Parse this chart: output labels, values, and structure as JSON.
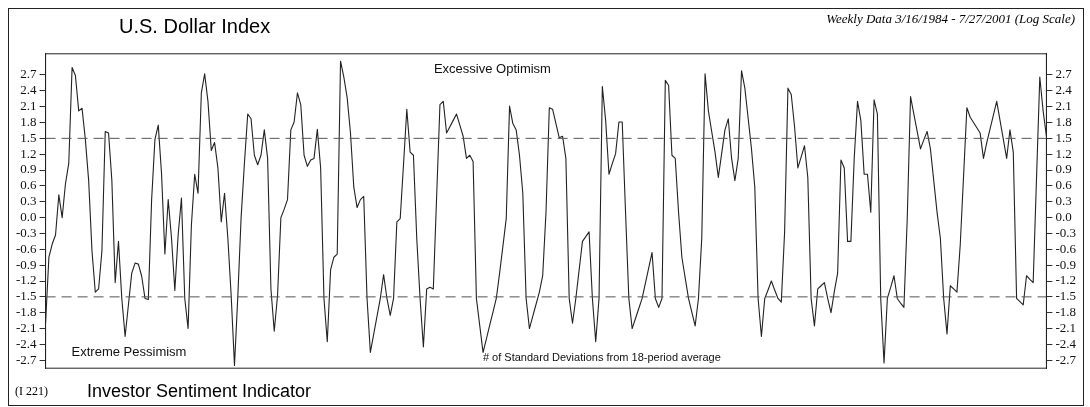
{
  "chart_data": {
    "type": "line",
    "title": "U.S. Dollar Index",
    "subtitle": "Weekly Data 3/16/1984 - 7/27/2001 (Log Scale)",
    "annotations": [
      "Excessive Optimism",
      "Extreme Pessimism",
      "# of Standard Deviations from 18-period average",
      "(I 221)",
      "Investor Sentiment Indicator"
    ],
    "categories": [
      null,
      null,
      null,
      null,
      null,
      null,
      null,
      null,
      null,
      null,
      null,
      null,
      null,
      null,
      null,
      null,
      null,
      null,
      null,
      null,
      null,
      null,
      null,
      null,
      null,
      null,
      null,
      null,
      null,
      null,
      null,
      null,
      null,
      null,
      null,
      null,
      null,
      null,
      null,
      null,
      null,
      null,
      null,
      null,
      null,
      null,
      null,
      null,
      null,
      null,
      null,
      null,
      null,
      null,
      null,
      null,
      null,
      null,
      null,
      null,
      null,
      null,
      null,
      null,
      null,
      null,
      null,
      null,
      null,
      null,
      null,
      null,
      null,
      null,
      null,
      null,
      null,
      null,
      null,
      null,
      null,
      null,
      null,
      null,
      null,
      null,
      null,
      null,
      null,
      null,
      null,
      null,
      null,
      null,
      null,
      null,
      null,
      null,
      null,
      null,
      null,
      null,
      null,
      null,
      null,
      null,
      null,
      null,
      null,
      null,
      null,
      null,
      null,
      null,
      null,
      null,
      null,
      null,
      null,
      null,
      null,
      null,
      null,
      null,
      null,
      null,
      null,
      null,
      null,
      null,
      null,
      null,
      null,
      null,
      null,
      null,
      null,
      null,
      null,
      null,
      null,
      null,
      null,
      null,
      null,
      null,
      null,
      null,
      null,
      null,
      null,
      null,
      null,
      null,
      null,
      null,
      null,
      null,
      null,
      null,
      null,
      null,
      null,
      null,
      null,
      null,
      null,
      null,
      null,
      null,
      null,
      null,
      null,
      null,
      null,
      null,
      null,
      null,
      null,
      null,
      null,
      null,
      null,
      null,
      null,
      null,
      null,
      null,
      null,
      null,
      null,
      null,
      null,
      null,
      null,
      null,
      null,
      null,
      null,
      null,
      null,
      null,
      null,
      null,
      null,
      null,
      null,
      null,
      null,
      null,
      null,
      null,
      null,
      null,
      null,
      null,
      null,
      null,
      null,
      null,
      null,
      null,
      null,
      null,
      null,
      null,
      null,
      null,
      null,
      null,
      null,
      null,
      null,
      null,
      null,
      null,
      null,
      null,
      null,
      null,
      null,
      null,
      null,
      null,
      null,
      null,
      null,
      null,
      null,
      null,
      null,
      null,
      null,
      null,
      null,
      null,
      null,
      null,
      null,
      null,
      null,
      null,
      null,
      null,
      null,
      null,
      null,
      null,
      null,
      null,
      null,
      null,
      null,
      null,
      null,
      null,
      null,
      null,
      null,
      null,
      null,
      null,
      null,
      null,
      null,
      null,
      null,
      null,
      null,
      null,
      null,
      null,
      null,
      null,
      null,
      null,
      null,
      null,
      null,
      null,
      null,
      null,
      null
    ],
    "series": [
      {
        "color": "#222222",
        "values": [
          -2.0,
          -0.75,
          -0.5,
          -0.33,
          0.43,
          0.0,
          0.64,
          1.03,
          2.84,
          2.69,
          2.02,
          2.07,
          1.48,
          0.7,
          -0.63,
          -1.41,
          -1.35,
          -0.63,
          1.63,
          1.6,
          0.7,
          -1.23,
          -0.45,
          -1.53,
          -2.25,
          -1.65,
          -1.05,
          -0.86,
          -0.88,
          -1.11,
          -1.53,
          -1.55,
          0.34,
          1.48,
          1.75,
          0.82,
          -0.69,
          0.34,
          -0.39,
          -1.38,
          -0.33,
          0.37,
          -1.53,
          -2.1,
          -0.14,
          0.82,
          0.46,
          2.36,
          2.72,
          2.2,
          1.27,
          1.42,
          0.94,
          -0.08,
          0.46,
          -0.39,
          -1.47,
          -2.8,
          -1.5,
          0.0,
          1.03,
          1.96,
          1.87,
          1.18,
          1.0,
          1.18,
          1.66,
          1.12,
          -1.35,
          -2.15,
          -1.47,
          0.0,
          0.16,
          0.34,
          1.66,
          1.81,
          2.36,
          2.14,
          1.18,
          0.97,
          1.09,
          1.12,
          1.67,
          0.94,
          -1.53,
          -2.35,
          -0.99,
          -0.75,
          -0.69,
          2.96,
          2.66,
          2.27,
          1.6,
          0.58,
          0.19,
          0.34,
          0.4,
          -1.53,
          -2.55,
          -2.21,
          -1.87,
          -1.53,
          -1.08,
          -1.53,
          -1.85,
          -1.53,
          -0.08,
          -0.02,
          1.0,
          2.05,
          1.24,
          1.18,
          -0.39,
          -1.53,
          -2.45,
          -1.35,
          -1.32,
          -1.35,
          0.4,
          2.14,
          2.2,
          1.6,
          1.72,
          1.84,
          1.96,
          1.75,
          1.54,
          1.12,
          1.18,
          1.06,
          -1.53,
          -2.04,
          -2.55,
          -2.3,
          -2.04,
          -1.79,
          -1.53,
          -1.05,
          -0.54,
          -0.02,
          2.11,
          1.78,
          1.66,
          1.18,
          0.46,
          -1.53,
          -2.1,
          -1.87,
          -1.64,
          -1.41,
          -1.1,
          0.1,
          2.08,
          2.05,
          1.78,
          1.51,
          1.54,
          1.12,
          -1.53,
          -2.0,
          -1.53,
          -0.99,
          -0.45,
          -0.36,
          -0.27,
          -1.53,
          -2.35,
          -1.53,
          2.48,
          1.84,
          0.82,
          1.02,
          1.21,
          1.81,
          1.81,
          0.1,
          -1.53,
          -2.1,
          -1.91,
          -1.72,
          -1.53,
          -1.24,
          -0.95,
          -0.66,
          -1.53,
          -1.7,
          -1.53,
          2.6,
          2.5,
          1.18,
          1.12,
          0.1,
          -0.75,
          -1.14,
          -1.53,
          -1.79,
          -2.05,
          -1.53,
          -0.39,
          2.72,
          2.02,
          1.63,
          1.24,
          0.76,
          1.21,
          1.66,
          1.87,
          1.12,
          0.7,
          1.12,
          2.78,
          2.45,
          1.88,
          1.3,
          0.58,
          -1.53,
          -2.25,
          -1.53,
          -1.37,
          -1.2,
          -1.37,
          -1.53,
          -1.6,
          -0.27,
          2.45,
          2.33,
          1.72,
          0.94,
          1.15,
          1.36,
          0.76,
          -1.53,
          -2.05,
          -1.35,
          -1.29,
          -1.23,
          -1.53,
          -1.8,
          -1.4,
          -1.05,
          1.09,
          0.94,
          -0.45,
          -0.45,
          1.12,
          2.2,
          1.84,
          0.82,
          0.82,
          0.1,
          2.23,
          1.96,
          -1.53,
          -2.75,
          -1.53,
          -1.32,
          -1.1,
          -1.53,
          -1.62,
          -1.7,
          -0.02,
          2.29,
          1.96,
          1.63,
          1.3,
          1.47,
          1.63,
          1.3,
          0.7,
          0.1,
          -0.39,
          -1.53,
          -2.2,
          -1.29,
          -1.35,
          -1.41,
          -0.51,
          0.79,
          2.08,
          1.9,
          1.8,
          1.7,
          1.6,
          1.12,
          1.42,
          1.68,
          1.94,
          2.2,
          1.84,
          1.48,
          1.12,
          1.66,
          1.24,
          -1.53,
          -1.59,
          -1.65,
          -1.1,
          -1.17,
          -1.23,
          0.72,
          2.66,
          2.02,
          1.54
        ]
      }
    ],
    "ylim": [
      -2.85,
      3.1
    ],
    "yticks": [
      -2.7,
      -2.4,
      -2.1,
      -1.8,
      -1.5,
      -1.2,
      -0.9,
      -0.6,
      -0.3,
      {
        "value": 0,
        "label": "0.0"
      },
      0.3,
      0.6,
      0.9,
      1.2,
      1.5,
      1.8,
      2.1,
      2.4,
      2.7
    ],
    "y2lim": [
      -2.85,
      3.1
    ],
    "y2ticks": [
      -2.7,
      -2.4,
      -2.1,
      -1.8,
      -1.5,
      -1.2,
      -0.9,
      -0.6,
      -0.3,
      {
        "value": 0,
        "label": "0.0"
      },
      0.3,
      0.6,
      0.9,
      1.2,
      1.5,
      1.8,
      2.1,
      2.4,
      2.7
    ],
    "ref_lines": [
      {
        "axis": "y",
        "value": 1.5,
        "line_style": "dashed",
        "color": "#555555"
      },
      {
        "axis": "y",
        "value": -1.5,
        "line_style": "dashed",
        "color": "#555555"
      }
    ],
    "tick_labels": "y",
    "grid": false,
    "legend": false,
    "marker": "none",
    "line_style": "solid"
  }
}
